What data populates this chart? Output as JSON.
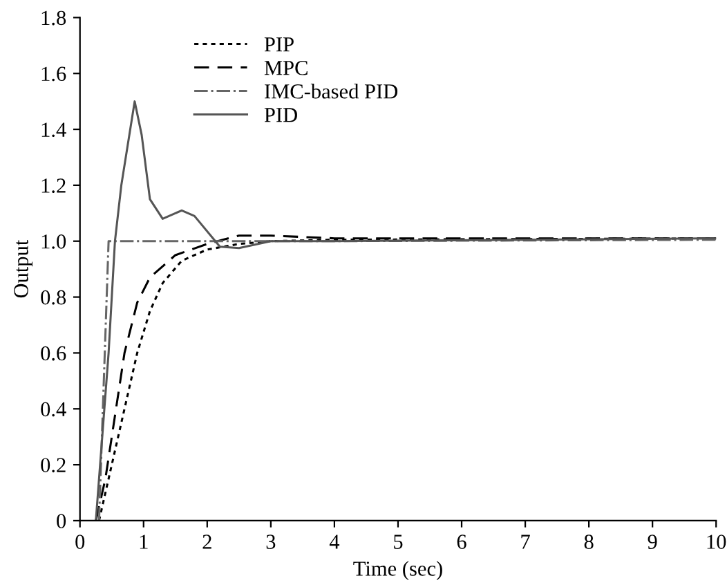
{
  "chart_data": {
    "type": "line",
    "xlabel": "Time (sec)",
    "ylabel": "Output",
    "xlim": [
      0,
      10
    ],
    "ylim": [
      0,
      1.8
    ],
    "xticks": [
      0,
      1,
      2,
      3,
      4,
      5,
      6,
      7,
      8,
      9,
      10
    ],
    "yticks": [
      0,
      0.2,
      0.4,
      0.6,
      0.8,
      {
        "value": 1,
        "label": "1.0"
      },
      1.2,
      1.4,
      1.6,
      1.8
    ],
    "grid": false,
    "legend": "top",
    "marker": "none",
    "series": [
      {
        "name": "PIP",
        "color": "#000000",
        "line_style": "dotted",
        "x": [
          0.3,
          0.45,
          0.6,
          0.75,
          0.9,
          1.1,
          1.3,
          1.6,
          2.0,
          2.5,
          3.0,
          4.0,
          10.0
        ],
        "values": [
          0,
          0.15,
          0.3,
          0.45,
          0.6,
          0.75,
          0.85,
          0.93,
          0.97,
          0.99,
          1.0,
          1.005,
          1.01
        ]
      },
      {
        "name": "MPC",
        "color": "#000000",
        "line_style": "dashed",
        "x": [
          0.25,
          0.4,
          0.5,
          0.7,
          0.9,
          1.1,
          1.5,
          2.0,
          2.5,
          3.0,
          4.0,
          10.0
        ],
        "values": [
          0,
          0.15,
          0.3,
          0.6,
          0.78,
          0.87,
          0.95,
          0.99,
          1.02,
          1.02,
          1.01,
          1.01
        ]
      },
      {
        "name": "IMC-based PID",
        "color": "#666666",
        "line_style": "dashdot",
        "x": [
          0.3,
          0.45,
          1.0,
          4.0,
          10.0
        ],
        "values": [
          0,
          1.0,
          1.0,
          1.0,
          1.005
        ]
      },
      {
        "name": "PID",
        "color": "#555555",
        "line_style": "solid",
        "x": [
          0.25,
          0.45,
          0.55,
          0.65,
          0.86,
          0.97,
          1.1,
          1.3,
          1.6,
          1.8,
          2.2,
          2.5,
          3.0,
          4.0,
          10.0
        ],
        "values": [
          0,
          0.6,
          1.0,
          1.2,
          1.5,
          1.38,
          1.15,
          1.08,
          1.11,
          1.09,
          0.98,
          0.975,
          1.0,
          1.0,
          1.01
        ]
      }
    ]
  }
}
